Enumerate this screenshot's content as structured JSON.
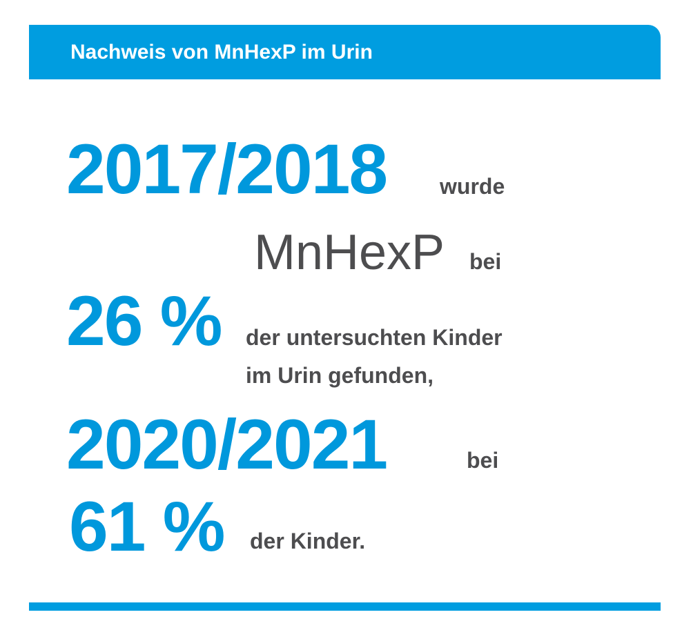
{
  "header": {
    "title": "Nachweis von MnHexP im Urin"
  },
  "content": {
    "period_1": "2017/2018",
    "word_wurde": "wurde",
    "substance": "MnHexP",
    "word_bei_1": "bei",
    "percent_1": "26 %",
    "text_1_line_1": "der untersuchten Kinder",
    "text_1_line_2": "im Urin gefunden,",
    "period_2": "2020/2021",
    "word_bei_2": "bei",
    "percent_2": "61 %",
    "text_2": "der Kinder."
  },
  "colors": {
    "accent_blue": "#009de0",
    "text_gray": "#4d4d4f"
  }
}
